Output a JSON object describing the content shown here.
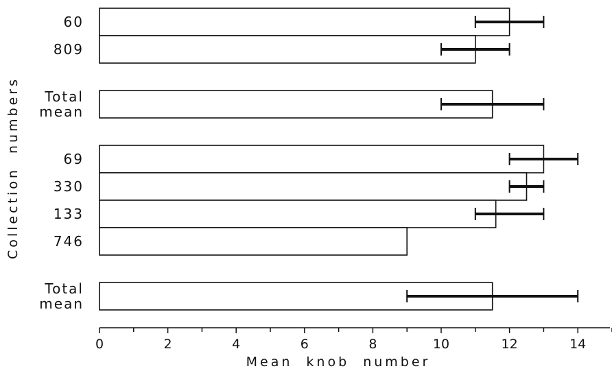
{
  "chart_data": {
    "type": "bar",
    "orientation": "horizontal",
    "error_bars": true,
    "categories": [
      [
        "60"
      ],
      [
        "809"
      ],
      [
        "Total",
        "mean"
      ],
      [
        "69"
      ],
      [
        "330"
      ],
      [
        "133"
      ],
      [
        "746"
      ],
      [
        "Total",
        "mean"
      ]
    ],
    "values": [
      12,
      11,
      11.5,
      13,
      12.5,
      11.6,
      9,
      11.5
    ],
    "error_ranges": [
      [
        11,
        13
      ],
      [
        10,
        12
      ],
      [
        10,
        13
      ],
      [
        12,
        14
      ],
      [
        12,
        13
      ],
      [
        11,
        13
      ],
      null,
      [
        9,
        14
      ]
    ],
    "groups": [
      [
        0,
        1
      ],
      [
        2
      ],
      [
        3,
        4,
        5,
        6
      ],
      [
        7
      ]
    ],
    "xlabel": "Mean knob number",
    "ylabel": "Collection numbers",
    "xlim": [
      0,
      15
    ],
    "xticks": [
      0,
      2,
      4,
      6,
      8,
      10,
      12,
      14
    ],
    "grid": false,
    "colors": {
      "bar_fill": "#ffffff",
      "stroke": "#111111"
    }
  }
}
